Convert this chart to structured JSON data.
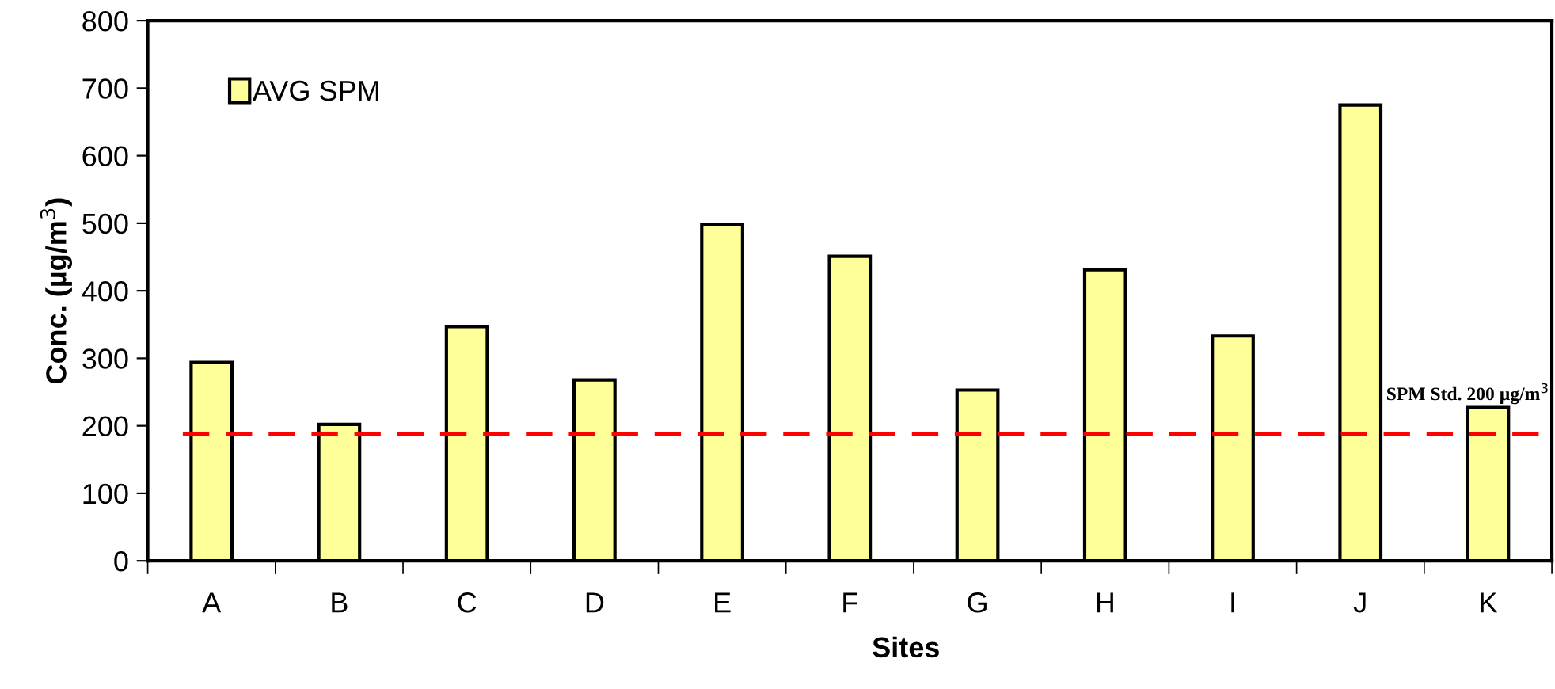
{
  "chart_data": {
    "type": "bar",
    "xlabel": "Sites",
    "ylabel": "Conc. (µg/m$^{3}$)",
    "categories": [
      "A",
      "B",
      "C",
      "D",
      "E",
      "F",
      "G",
      "H",
      "I",
      "J",
      "K"
    ],
    "series": [
      {
        "name": "AVG SPM",
        "color": "#ffff99",
        "values": [
          294,
          202,
          347,
          268,
          498,
          451,
          253,
          431,
          333,
          675,
          227
        ]
      }
    ],
    "ylim": [
      0,
      800
    ],
    "yticks": [
      0,
      100,
      200,
      300,
      400,
      500,
      600,
      700,
      800
    ],
    "ref_lines": [
      {
        "axis": "y",
        "value": 188,
        "label": "SPM Std. 200 µg/m$^{3}$",
        "color": "#ff0000",
        "line_style": "dashed"
      }
    ],
    "grid": false,
    "legend": "top left"
  }
}
